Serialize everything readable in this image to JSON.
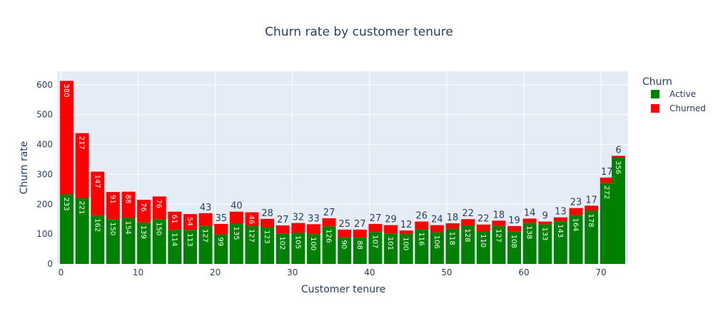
{
  "chart_data": {
    "type": "bar",
    "barmode": "stack",
    "title": "Churn rate by customer tenure",
    "xlabel": "Customer tenure",
    "ylabel": "Churn rate",
    "xlim": [
      -0.5,
      73.5
    ],
    "ylim": [
      0,
      645
    ],
    "xticks": [
      0,
      10,
      20,
      30,
      40,
      50,
      60,
      70
    ],
    "yticks": [
      0,
      100,
      200,
      300,
      400,
      500,
      600
    ],
    "grid": true,
    "legend": {
      "title": "Churn",
      "position": "right"
    },
    "x": [
      0.75,
      2.75,
      4.75,
      6.75,
      8.75,
      10.75,
      12.75,
      14.75,
      16.75,
      18.75,
      20.75,
      22.75,
      24.75,
      26.75,
      28.75,
      30.75,
      32.75,
      34.75,
      36.75,
      38.75,
      40.75,
      42.75,
      44.75,
      46.75,
      48.75,
      50.75,
      52.75,
      54.75,
      56.75,
      58.75,
      60.75,
      62.75,
      64.75,
      66.75,
      68.75,
      70.75,
      72.25
    ],
    "series": [
      {
        "name": "Active",
        "color": "#008000",
        "values": [
          233,
          221,
          162,
          150,
          154,
          139,
          150,
          114,
          113,
          127,
          99,
          135,
          127,
          123,
          102,
          105,
          100,
          126,
          90,
          88,
          107,
          101,
          100,
          116,
          106,
          118,
          128,
          110,
          127,
          108,
          138,
          133,
          143,
          164,
          178,
          272,
          356
        ]
      },
      {
        "name": "Churned",
        "color": "#ff0000",
        "values": [
          380,
          217,
          147,
          91,
          88,
          76,
          76,
          61,
          54,
          43,
          35,
          40,
          46,
          28,
          27,
          32,
          33,
          27,
          25,
          27,
          27,
          29,
          12,
          26,
          24,
          18,
          22,
          22,
          18,
          19,
          14,
          9,
          13,
          23,
          17,
          17,
          6
        ]
      }
    ]
  }
}
